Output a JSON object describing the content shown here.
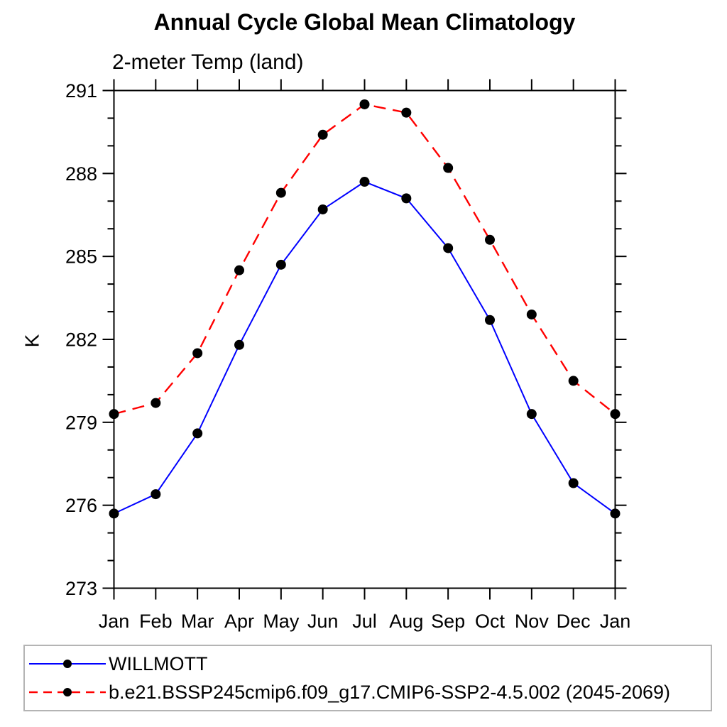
{
  "chart_data": {
    "type": "line",
    "title": "Annual Cycle Global Mean Climatology",
    "subtitle": "2-meter Temp (land)",
    "ylabel": "K",
    "xlabel": "",
    "categories": [
      "Jan",
      "Feb",
      "Mar",
      "Apr",
      "May",
      "Jun",
      "Jul",
      "Aug",
      "Sep",
      "Oct",
      "Nov",
      "Dec",
      "Jan"
    ],
    "ylim": [
      273,
      291
    ],
    "ytick_major_step": 3,
    "ytick_minor_step": 1,
    "ytick_labels": [
      "273",
      "276",
      "279",
      "282",
      "285",
      "288",
      "291"
    ],
    "grid": false,
    "legend_position": "bottom-left",
    "marker_color": "#000000",
    "axis_color": "#000000",
    "series": [
      {
        "name": "WILLMOTT",
        "color": "#0000ff",
        "line_style": "solid",
        "marker": "filled-circle",
        "values": [
          275.7,
          276.4,
          278.6,
          281.8,
          284.7,
          286.7,
          287.7,
          287.1,
          285.3,
          282.7,
          279.3,
          276.8,
          275.7
        ]
      },
      {
        "name": "b.e21.BSSP245cmip6.f09_g17.CMIP6-SSP2-4.5.002 (2045-2069)",
        "color": "#ff0000",
        "line_style": "dashed",
        "marker": "filled-circle",
        "values": [
          279.3,
          279.7,
          281.5,
          284.5,
          287.3,
          289.4,
          290.5,
          290.2,
          288.2,
          285.6,
          282.9,
          280.5,
          279.3
        ]
      }
    ]
  }
}
